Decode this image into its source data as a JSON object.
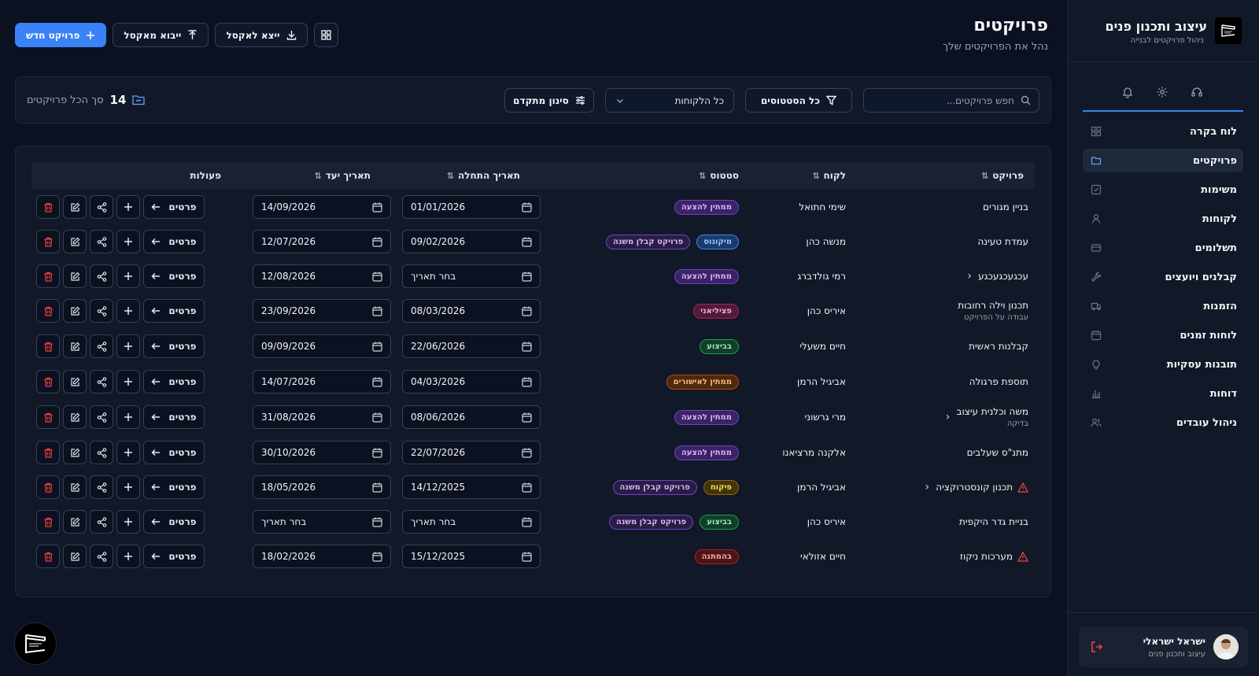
{
  "brand": {
    "title": "עיצוב ותכנון פנים",
    "subtitle": "ניהול פרויקטים לבנייה"
  },
  "sidebar": {
    "top_icons": [
      "headset-icon",
      "gear-icon",
      "bell-icon"
    ],
    "items": [
      {
        "label": "לוח בקרה",
        "icon": "grid-icon",
        "active": false
      },
      {
        "label": "פרויקטים",
        "icon": "folder-icon",
        "active": true
      },
      {
        "label": "משימות",
        "icon": "checkbox-icon",
        "active": false
      },
      {
        "label": "לקוחות",
        "icon": "user-icon",
        "active": false
      },
      {
        "label": "תשלומים",
        "icon": "card-icon",
        "active": false
      },
      {
        "label": "קבלנים ויועצים",
        "icon": "wrench-icon",
        "active": false
      },
      {
        "label": "הזמנות",
        "icon": "truck-icon",
        "active": false
      },
      {
        "label": "לוחות זמנים",
        "icon": "calendar-icon",
        "active": false
      },
      {
        "label": "תובנות עסקיות",
        "icon": "bulb-icon",
        "active": false
      },
      {
        "label": "דוחות",
        "icon": "chart-icon",
        "active": false
      },
      {
        "label": "ניהול עובדים",
        "icon": "users-icon",
        "active": false
      }
    ]
  },
  "user": {
    "name": "ישראל ישראלי",
    "role": "עיצוב ותכנון פנים"
  },
  "header": {
    "title": "פרויקטים",
    "subtitle": "נהל את הפרויקטים שלך"
  },
  "toolbar": {
    "new_project": "פרויקט חדש",
    "import_excel": "ייבוא מאקסל",
    "export_excel": "ייצא לאקסל"
  },
  "filters": {
    "search_placeholder": "חפש פרויקטים...",
    "status": "כל הסטטוסים",
    "client": "כל הלקוחות",
    "advanced": "סינון מתקדם",
    "total_label": "סך הכל פרויקטים",
    "total_count": "14"
  },
  "table": {
    "headers": {
      "project": "פרויקט",
      "client": "לקוח",
      "status": "סטטוס",
      "start": "תאריך התחלה",
      "due": "תאריך יעד",
      "actions": "פעולות"
    },
    "details_label": "פרטים",
    "rows": [
      {
        "project": "בניין מגורים",
        "sub": "",
        "chevron": false,
        "warning": false,
        "client": "שימי חתואל",
        "status": "ממתין להצעה",
        "status_color": "purple",
        "subtag": "",
        "start": "01/01/2026",
        "due": "14/09/2026"
      },
      {
        "project": "עמדת טעינה",
        "sub": "",
        "chevron": false,
        "warning": false,
        "client": "מנשה כהן",
        "status": "מיקונוס",
        "status_color": "blue",
        "subtag": "פרויקט קבלן משנה",
        "start": "09/02/2026",
        "due": "12/07/2026"
      },
      {
        "project": "עכגעכגעכגע",
        "sub": "",
        "chevron": true,
        "warning": false,
        "client": "רמי גולדברג",
        "status": "ממתין להצעה",
        "status_color": "purple",
        "subtag": "",
        "start": "בחר תאריך",
        "due": "12/08/2026"
      },
      {
        "project": "תכנון וילה רחובות",
        "sub": "עבודה על הפרויקט",
        "chevron": false,
        "warning": false,
        "client": "איריס כהן",
        "status": "פציליאני",
        "status_color": "pink",
        "subtag": "",
        "start": "08/03/2026",
        "due": "23/09/2026"
      },
      {
        "project": "קבלנות ראשית",
        "sub": "",
        "chevron": false,
        "warning": false,
        "client": "חיים משעלי",
        "status": "בביצוע",
        "status_color": "green",
        "subtag": "",
        "start": "22/06/2026",
        "due": "09/09/2026"
      },
      {
        "project": "תוספת פרגולה",
        "sub": "",
        "chevron": false,
        "warning": false,
        "client": "אביגיל הרמן",
        "status": "ממתין לאישורים",
        "status_color": "orange",
        "subtag": "",
        "start": "04/03/2026",
        "due": "14/07/2026"
      },
      {
        "project": "משה וכלנית עיצוב",
        "sub": "בדיקה",
        "chevron": true,
        "warning": false,
        "client": "מרי גרשוני",
        "status": "ממתין להצעה",
        "status_color": "purple",
        "subtag": "",
        "start": "08/06/2026",
        "due": "31/08/2026"
      },
      {
        "project": "מתנ\"ס שעלבים",
        "sub": "",
        "chevron": false,
        "warning": false,
        "client": "אלקנה מרציאנו",
        "status": "ממתין להצעה",
        "status_color": "purple",
        "subtag": "",
        "start": "22/07/2026",
        "due": "30/10/2026"
      },
      {
        "project": "תכנון קונסטרוקציה",
        "sub": "",
        "chevron": true,
        "warning": true,
        "client": "אביגיל הרמן",
        "status": "פיקוח",
        "status_color": "yellow",
        "subtag": "פרויקט קבלן משנה",
        "start": "14/12/2025",
        "due": "18/05/2026"
      },
      {
        "project": "בניית גדר היקפית",
        "sub": "",
        "chevron": false,
        "warning": false,
        "client": "איריס כהן",
        "status": "בביצוע",
        "status_color": "green",
        "subtag": "פרויקט קבלן משנה",
        "start": "בחר תאריך",
        "due": "בחר תאריך"
      },
      {
        "project": "מערכות ניקוז",
        "sub": "",
        "chevron": false,
        "warning": true,
        "client": "חיים אזולאי",
        "status": "בהמתנה",
        "status_color": "red",
        "subtag": "",
        "start": "15/12/2025",
        "due": "18/02/2026"
      }
    ]
  }
}
